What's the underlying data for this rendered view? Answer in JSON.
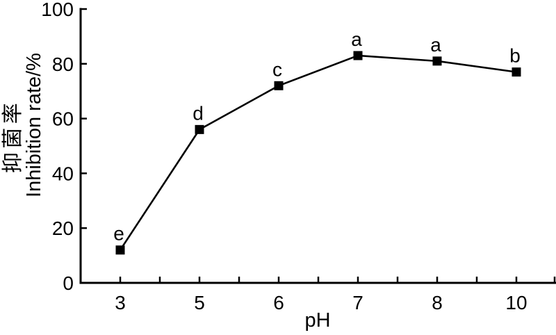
{
  "figure": {
    "background_color": "#ffffff",
    "foreground_color": "#000000"
  },
  "chart_data": {
    "type": "line",
    "title": "",
    "xlabel": "pH",
    "ylabel_zh": "抑菌率",
    "ylabel_en": "Inhibition rate/%",
    "categories": [
      3,
      5,
      6,
      7,
      8,
      10
    ],
    "values": [
      12,
      56,
      72,
      83,
      81,
      77
    ],
    "point_labels": [
      "e",
      "d",
      "c",
      "a",
      "a",
      "b"
    ],
    "yticks": [
      0,
      20,
      40,
      60,
      80,
      100
    ],
    "ylim": [
      0,
      100
    ],
    "x_minor_ticks_between_categories": true,
    "grid": false,
    "legend": "none",
    "marker": "filled-square",
    "line_color": "#000000",
    "marker_color": "#000000",
    "axis_color": "#000000"
  }
}
